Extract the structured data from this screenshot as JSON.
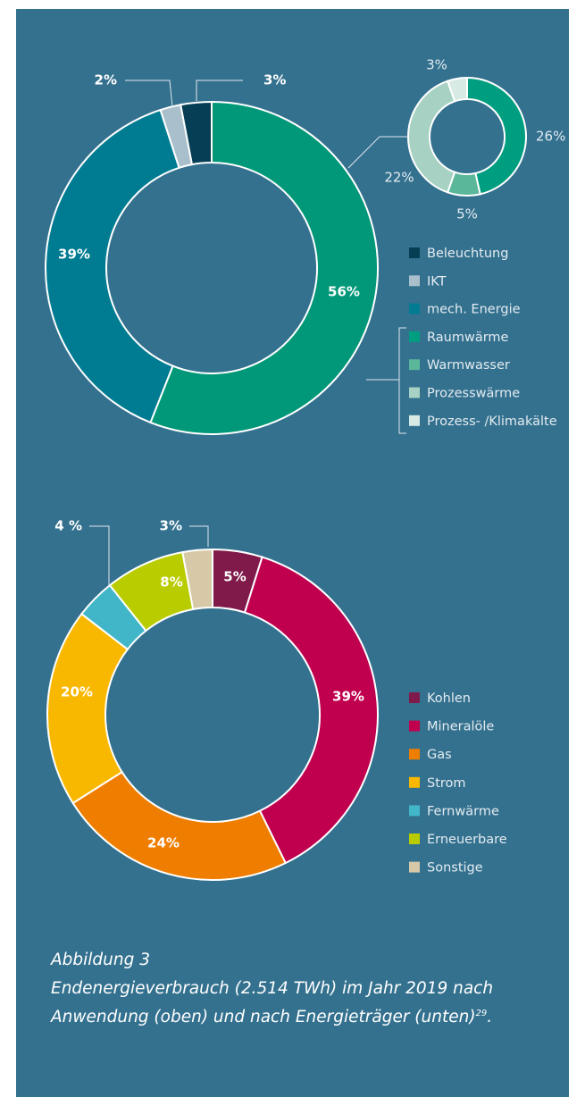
{
  "chart_data": [
    {
      "type": "donut",
      "categories": [
        "Beleuchtung",
        "IKT",
        "mech. Energie",
        null
      ],
      "values": [
        3,
        2,
        39,
        56
      ],
      "value_labels": [
        "3%",
        "2%",
        "39%",
        "56%"
      ],
      "colors": [
        "#063f55",
        "#a9bfcc",
        "#007c92",
        "#009878"
      ]
    },
    {
      "type": "donut",
      "categories": [
        "Raumwärme",
        "Warmwasser",
        "Prozesswärme",
        "Prozess- /Klimakälte"
      ],
      "values": [
        26,
        5,
        22,
        3
      ],
      "value_labels": [
        "26%",
        "5%",
        "22%",
        "3%"
      ],
      "colors": [
        "#009e80",
        "#5ab79a",
        "#a7d2c3",
        "#d7ebe4"
      ]
    },
    {
      "type": "donut",
      "categories": [
        "Kohlen",
        "Mineralöle",
        "Gas",
        "Strom",
        "Fernwärme",
        "Erneuerbare",
        "Sonstige"
      ],
      "values": [
        5,
        39,
        24,
        20,
        4,
        8,
        3
      ],
      "value_labels": [
        "5%",
        "39%",
        "24%",
        "20%",
        "4 %",
        "8%",
        "3%"
      ],
      "colors": [
        "#7f1a4a",
        "#c0004f",
        "#ef7d00",
        "#f9b800",
        "#41b6c8",
        "#b9cc00",
        "#d7c9a8"
      ]
    }
  ],
  "caption": {
    "label": "Abbildung 3",
    "text": "Endenergieverbrauch (2.514 TWh) im Jahr 2019 nach Anwendung (oben) und nach Energieträger (unten)",
    "footnote": "29",
    "end": "."
  }
}
